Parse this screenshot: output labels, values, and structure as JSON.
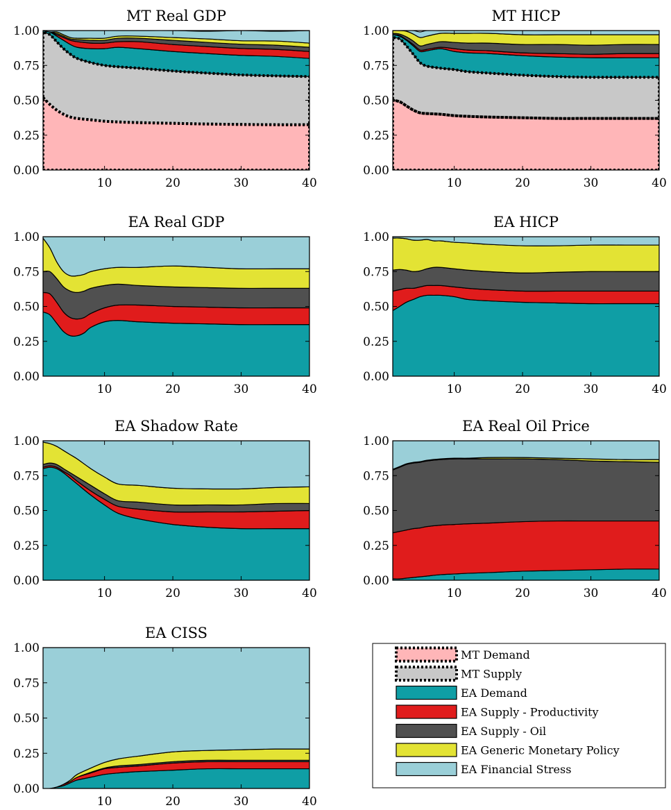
{
  "legend": {
    "entries": [
      {
        "label": "MT Demand",
        "color": "#ffb6b8",
        "style": "dotted"
      },
      {
        "label": "MT Supply",
        "color": "#c8c8c8",
        "style": "dotted"
      },
      {
        "label": "EA Demand",
        "color": "#0f9ea5",
        "style": "solid"
      },
      {
        "label": "EA Supply - Productivity",
        "color": "#e01c1c",
        "style": "solid"
      },
      {
        "label": "EA Supply - Oil",
        "color": "#505050",
        "style": "solid"
      },
      {
        "label": "EA Generic Monetary Policy",
        "color": "#e3e334",
        "style": "solid"
      },
      {
        "label": "EA Financial Stress",
        "color": "#9acfd8",
        "style": "solid"
      }
    ]
  },
  "chart_data": [
    {
      "type": "area",
      "stacked": true,
      "title": "MT Real GDP",
      "xlim": [
        1,
        40
      ],
      "ylim": [
        0,
        1
      ],
      "xticks": [
        10,
        20,
        30,
        40
      ],
      "yticks": [
        0,
        0.25,
        0.5,
        0.75,
        1
      ],
      "x": [
        1,
        2,
        3,
        4,
        5,
        6,
        8,
        10,
        12,
        15,
        20,
        25,
        30,
        35,
        40
      ],
      "series": [
        {
          "name": "MT Demand",
          "values": [
            0.52,
            0.47,
            0.43,
            0.4,
            0.38,
            0.37,
            0.36,
            0.35,
            0.345,
            0.34,
            0.335,
            0.33,
            0.327,
            0.325,
            0.325
          ]
        },
        {
          "name": "MT Supply",
          "values": [
            0.47,
            0.5,
            0.49,
            0.47,
            0.45,
            0.43,
            0.41,
            0.4,
            0.395,
            0.39,
            0.375,
            0.365,
            0.355,
            0.35,
            0.345
          ]
        },
        {
          "name": "EA Demand",
          "values": [
            0.01,
            0.02,
            0.04,
            0.06,
            0.07,
            0.08,
            0.1,
            0.12,
            0.14,
            0.14,
            0.14,
            0.14,
            0.14,
            0.14,
            0.13
          ]
        },
        {
          "name": "EA Supply - Productivity",
          "values": [
            0,
            0,
            0.01,
            0.02,
            0.03,
            0.04,
            0.04,
            0.04,
            0.04,
            0.05,
            0.05,
            0.05,
            0.05,
            0.05,
            0.05
          ]
        },
        {
          "name": "EA Supply - Oil",
          "values": [
            0,
            0,
            0.01,
            0.01,
            0.01,
            0.015,
            0.02,
            0.02,
            0.025,
            0.025,
            0.03,
            0.03,
            0.03,
            0.03,
            0.03
          ]
        },
        {
          "name": "EA Generic Monetary Policy",
          "values": [
            0,
            0,
            0.01,
            0.01,
            0.01,
            0.01,
            0.015,
            0.015,
            0.015,
            0.015,
            0.02,
            0.025,
            0.025,
            0.03,
            0.03
          ]
        },
        {
          "name": "EA Financial Stress",
          "values": [
            0,
            0.01,
            0.01,
            0.03,
            0.05,
            0.055,
            0.055,
            0.055,
            0.04,
            0.04,
            0.05,
            0.055,
            0.073,
            0.07,
            0.09
          ]
        }
      ]
    },
    {
      "type": "area",
      "stacked": true,
      "title": "MT HICP",
      "xlim": [
        1,
        40
      ],
      "ylim": [
        0,
        1
      ],
      "xticks": [
        10,
        20,
        30,
        40
      ],
      "yticks": [
        0,
        0.25,
        0.5,
        0.75,
        1
      ],
      "x": [
        1,
        2,
        3,
        4,
        5,
        6,
        8,
        10,
        12,
        15,
        20,
        25,
        30,
        35,
        40
      ],
      "series": [
        {
          "name": "MT Demand",
          "values": [
            0.5,
            0.49,
            0.46,
            0.43,
            0.41,
            0.405,
            0.4,
            0.39,
            0.385,
            0.38,
            0.375,
            0.37,
            0.37,
            0.37,
            0.37
          ]
        },
        {
          "name": "MT Supply",
          "values": [
            0.45,
            0.45,
            0.43,
            0.4,
            0.36,
            0.34,
            0.33,
            0.33,
            0.32,
            0.315,
            0.305,
            0.3,
            0.295,
            0.295,
            0.295
          ]
        },
        {
          "name": "EA Demand",
          "values": [
            0.02,
            0.02,
            0.04,
            0.06,
            0.08,
            0.11,
            0.14,
            0.13,
            0.135,
            0.14,
            0.14,
            0.14,
            0.14,
            0.14,
            0.14
          ]
        },
        {
          "name": "EA Supply - Productivity",
          "values": [
            0,
            0.005,
            0.005,
            0.01,
            0.01,
            0.01,
            0.01,
            0.02,
            0.02,
            0.02,
            0.02,
            0.025,
            0.025,
            0.03,
            0.03
          ]
        },
        {
          "name": "EA Supply - Oil",
          "values": [
            0.01,
            0.01,
            0.02,
            0.025,
            0.03,
            0.035,
            0.04,
            0.045,
            0.05,
            0.055,
            0.06,
            0.065,
            0.065,
            0.065,
            0.065
          ]
        },
        {
          "name": "EA Generic Monetary Policy",
          "values": [
            0.02,
            0.025,
            0.04,
            0.05,
            0.06,
            0.06,
            0.06,
            0.065,
            0.07,
            0.07,
            0.07,
            0.07,
            0.075,
            0.07,
            0.07
          ]
        },
        {
          "name": "EA Financial Stress",
          "values": [
            0,
            0,
            0.005,
            0.025,
            0.04,
            0.04,
            0.02,
            0.02,
            0.02,
            0.02,
            0.03,
            0.03,
            0.03,
            0.03,
            0.03
          ]
        }
      ]
    },
    {
      "type": "area",
      "stacked": true,
      "title": "EA Real GDP",
      "xlim": [
        1,
        40
      ],
      "ylim": [
        0,
        1
      ],
      "xticks": [
        10,
        20,
        30,
        40
      ],
      "yticks": [
        0,
        0.25,
        0.5,
        0.75,
        1
      ],
      "x": [
        1,
        2,
        3,
        4,
        5,
        6,
        7,
        8,
        10,
        12,
        15,
        20,
        25,
        30,
        35,
        40
      ],
      "series": [
        {
          "name": "EA Demand",
          "values": [
            0.46,
            0.44,
            0.38,
            0.32,
            0.29,
            0.29,
            0.31,
            0.35,
            0.39,
            0.4,
            0.39,
            0.38,
            0.375,
            0.37,
            0.37,
            0.37
          ]
        },
        {
          "name": "EA Supply - Productivity",
          "values": [
            0.14,
            0.15,
            0.15,
            0.14,
            0.13,
            0.12,
            0.11,
            0.1,
            0.1,
            0.11,
            0.12,
            0.12,
            0.12,
            0.12,
            0.12,
            0.12
          ]
        },
        {
          "name": "EA Supply - Oil",
          "values": [
            0.15,
            0.16,
            0.17,
            0.18,
            0.19,
            0.19,
            0.19,
            0.18,
            0.16,
            0.15,
            0.14,
            0.14,
            0.14,
            0.14,
            0.14,
            0.14
          ]
        },
        {
          "name": "EA Generic Monetary Policy",
          "values": [
            0.24,
            0.17,
            0.12,
            0.11,
            0.11,
            0.12,
            0.12,
            0.12,
            0.12,
            0.12,
            0.13,
            0.15,
            0.145,
            0.14,
            0.14,
            0.14
          ]
        },
        {
          "name": "EA Financial Stress",
          "values": [
            0.01,
            0.08,
            0.18,
            0.25,
            0.28,
            0.28,
            0.27,
            0.25,
            0.23,
            0.22,
            0.22,
            0.21,
            0.22,
            0.23,
            0.23,
            0.23
          ]
        }
      ]
    },
    {
      "type": "area",
      "stacked": true,
      "title": "EA HICP",
      "xlim": [
        1,
        40
      ],
      "ylim": [
        0,
        1
      ],
      "xticks": [
        10,
        20,
        30,
        40
      ],
      "yticks": [
        0,
        0.25,
        0.5,
        0.75,
        1
      ],
      "x": [
        1,
        2,
        3,
        4,
        5,
        6,
        7,
        8,
        10,
        12,
        15,
        20,
        25,
        30,
        35,
        40
      ],
      "series": [
        {
          "name": "EA Demand",
          "values": [
            0.47,
            0.5,
            0.53,
            0.55,
            0.57,
            0.58,
            0.58,
            0.58,
            0.57,
            0.55,
            0.54,
            0.53,
            0.525,
            0.52,
            0.52,
            0.52
          ]
        },
        {
          "name": "EA Supply - Productivity",
          "values": [
            0.14,
            0.12,
            0.1,
            0.08,
            0.07,
            0.07,
            0.07,
            0.07,
            0.07,
            0.08,
            0.08,
            0.08,
            0.085,
            0.09,
            0.09,
            0.09
          ]
        },
        {
          "name": "EA Supply - Oil",
          "values": [
            0.15,
            0.145,
            0.13,
            0.12,
            0.115,
            0.12,
            0.13,
            0.13,
            0.13,
            0.13,
            0.13,
            0.13,
            0.135,
            0.14,
            0.14,
            0.14
          ]
        },
        {
          "name": "EA Generic Monetary Policy",
          "values": [
            0.23,
            0.225,
            0.225,
            0.225,
            0.22,
            0.21,
            0.19,
            0.19,
            0.19,
            0.195,
            0.195,
            0.195,
            0.19,
            0.19,
            0.19,
            0.19
          ]
        },
        {
          "name": "EA Financial Stress",
          "values": [
            0.01,
            0.01,
            0.015,
            0.025,
            0.025,
            0.02,
            0.03,
            0.03,
            0.04,
            0.045,
            0.055,
            0.065,
            0.065,
            0.06,
            0.06,
            0.06
          ]
        }
      ]
    },
    {
      "type": "area",
      "stacked": true,
      "title": "EA Shadow Rate",
      "xlim": [
        1,
        40
      ],
      "ylim": [
        0,
        1
      ],
      "xticks": [
        10,
        20,
        30,
        40
      ],
      "yticks": [
        0,
        0.25,
        0.5,
        0.75,
        1
      ],
      "x": [
        1,
        2,
        3,
        4,
        5,
        6,
        8,
        10,
        12,
        15,
        20,
        25,
        30,
        35,
        40
      ],
      "series": [
        {
          "name": "EA Demand",
          "values": [
            0.8,
            0.81,
            0.8,
            0.77,
            0.73,
            0.69,
            0.61,
            0.54,
            0.48,
            0.44,
            0.4,
            0.38,
            0.37,
            0.37,
            0.37
          ]
        },
        {
          "name": "EA Supply - Productivity",
          "values": [
            0.01,
            0.01,
            0.01,
            0.01,
            0.02,
            0.02,
            0.03,
            0.04,
            0.05,
            0.07,
            0.09,
            0.11,
            0.12,
            0.125,
            0.13
          ]
        },
        {
          "name": "EA Supply - Oil",
          "values": [
            0.02,
            0.02,
            0.02,
            0.02,
            0.02,
            0.03,
            0.04,
            0.04,
            0.04,
            0.05,
            0.05,
            0.05,
            0.05,
            0.055,
            0.05
          ]
        },
        {
          "name": "EA Generic Monetary Policy",
          "values": [
            0.16,
            0.14,
            0.13,
            0.13,
            0.13,
            0.13,
            0.12,
            0.12,
            0.12,
            0.12,
            0.12,
            0.115,
            0.115,
            0.115,
            0.12
          ]
        },
        {
          "name": "EA Financial Stress",
          "values": [
            0.01,
            0.02,
            0.04,
            0.07,
            0.1,
            0.13,
            0.2,
            0.26,
            0.31,
            0.32,
            0.34,
            0.345,
            0.345,
            0.335,
            0.33
          ]
        }
      ]
    },
    {
      "type": "area",
      "stacked": true,
      "title": "EA Real Oil Price",
      "xlim": [
        1,
        40
      ],
      "ylim": [
        0,
        1
      ],
      "xticks": [
        10,
        20,
        30,
        40
      ],
      "yticks": [
        0,
        0.25,
        0.5,
        0.75,
        1
      ],
      "x": [
        1,
        2,
        3,
        4,
        5,
        6,
        8,
        10,
        12,
        15,
        20,
        25,
        30,
        35,
        40
      ],
      "series": [
        {
          "name": "EA Demand",
          "values": [
            0.01,
            0.01,
            0.015,
            0.02,
            0.025,
            0.03,
            0.04,
            0.045,
            0.05,
            0.055,
            0.065,
            0.07,
            0.075,
            0.08,
            0.08
          ]
        },
        {
          "name": "EA Supply - Productivity",
          "values": [
            0.33,
            0.34,
            0.345,
            0.35,
            0.35,
            0.355,
            0.355,
            0.355,
            0.355,
            0.355,
            0.355,
            0.355,
            0.35,
            0.345,
            0.345
          ]
        },
        {
          "name": "EA Supply - Oil",
          "values": [
            0.45,
            0.46,
            0.47,
            0.47,
            0.47,
            0.47,
            0.47,
            0.47,
            0.465,
            0.46,
            0.45,
            0.44,
            0.43,
            0.425,
            0.42
          ]
        },
        {
          "name": "EA Generic Monetary Policy",
          "values": [
            0.005,
            0.005,
            0.005,
            0.005,
            0.005,
            0.005,
            0.005,
            0.005,
            0.005,
            0.01,
            0.01,
            0.01,
            0.015,
            0.015,
            0.02
          ]
        },
        {
          "name": "EA Financial Stress",
          "values": [
            0.205,
            0.185,
            0.165,
            0.155,
            0.15,
            0.14,
            0.13,
            0.125,
            0.125,
            0.12,
            0.12,
            0.125,
            0.13,
            0.135,
            0.135
          ]
        }
      ]
    },
    {
      "type": "area",
      "stacked": true,
      "title": "EA CISS",
      "xlim": [
        1,
        40
      ],
      "ylim": [
        0,
        1
      ],
      "xticks": [
        10,
        20,
        30,
        40
      ],
      "yticks": [
        0,
        0.25,
        0.5,
        0.75,
        1
      ],
      "x": [
        1,
        2,
        3,
        4,
        5,
        6,
        8,
        10,
        12,
        15,
        20,
        25,
        30,
        35,
        40
      ],
      "series": [
        {
          "name": "EA Demand",
          "values": [
            0,
            0,
            0.01,
            0.02,
            0.04,
            0.06,
            0.08,
            0.1,
            0.11,
            0.12,
            0.13,
            0.14,
            0.14,
            0.14,
            0.14
          ]
        },
        {
          "name": "EA Supply - Productivity",
          "values": [
            0,
            0,
            0,
            0.01,
            0.01,
            0.02,
            0.03,
            0.04,
            0.04,
            0.04,
            0.05,
            0.05,
            0.05,
            0.05,
            0.05
          ]
        },
        {
          "name": "EA Supply - Oil",
          "values": [
            0,
            0,
            0,
            0,
            0,
            0,
            0.005,
            0.005,
            0.01,
            0.01,
            0.01,
            0.01,
            0.01,
            0.01,
            0.01
          ]
        },
        {
          "name": "EA Generic Monetary Policy",
          "values": [
            0,
            0,
            0,
            0,
            0.01,
            0.02,
            0.03,
            0.04,
            0.05,
            0.06,
            0.07,
            0.07,
            0.075,
            0.08,
            0.08
          ]
        },
        {
          "name": "EA Financial Stress",
          "values": [
            1.0,
            1.0,
            0.99,
            0.97,
            0.94,
            0.9,
            0.855,
            0.815,
            0.79,
            0.77,
            0.74,
            0.73,
            0.725,
            0.72,
            0.72
          ]
        }
      ]
    }
  ]
}
